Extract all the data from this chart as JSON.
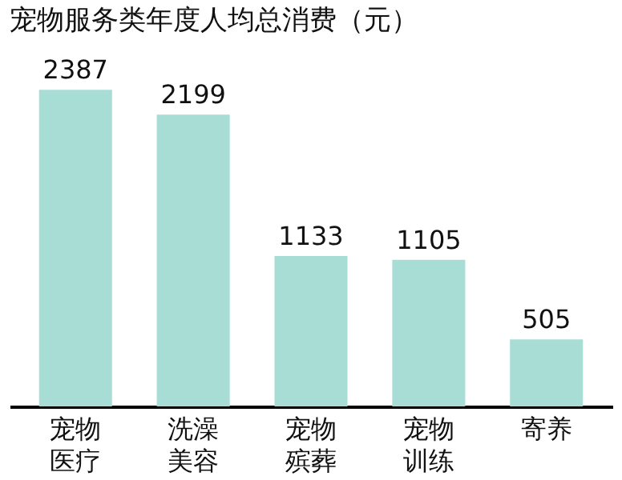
{
  "chart_data": {
    "type": "bar",
    "title": "宠物服务类年度人均总消费（元）",
    "categories": [
      "宠物医疗",
      "洗澡美容",
      "宠物殡葬",
      "宠物训练",
      "寄养"
    ],
    "values": [
      2387,
      2199,
      1133,
      1105,
      505
    ],
    "color": "#a8ddd6",
    "data_labels": true
  }
}
